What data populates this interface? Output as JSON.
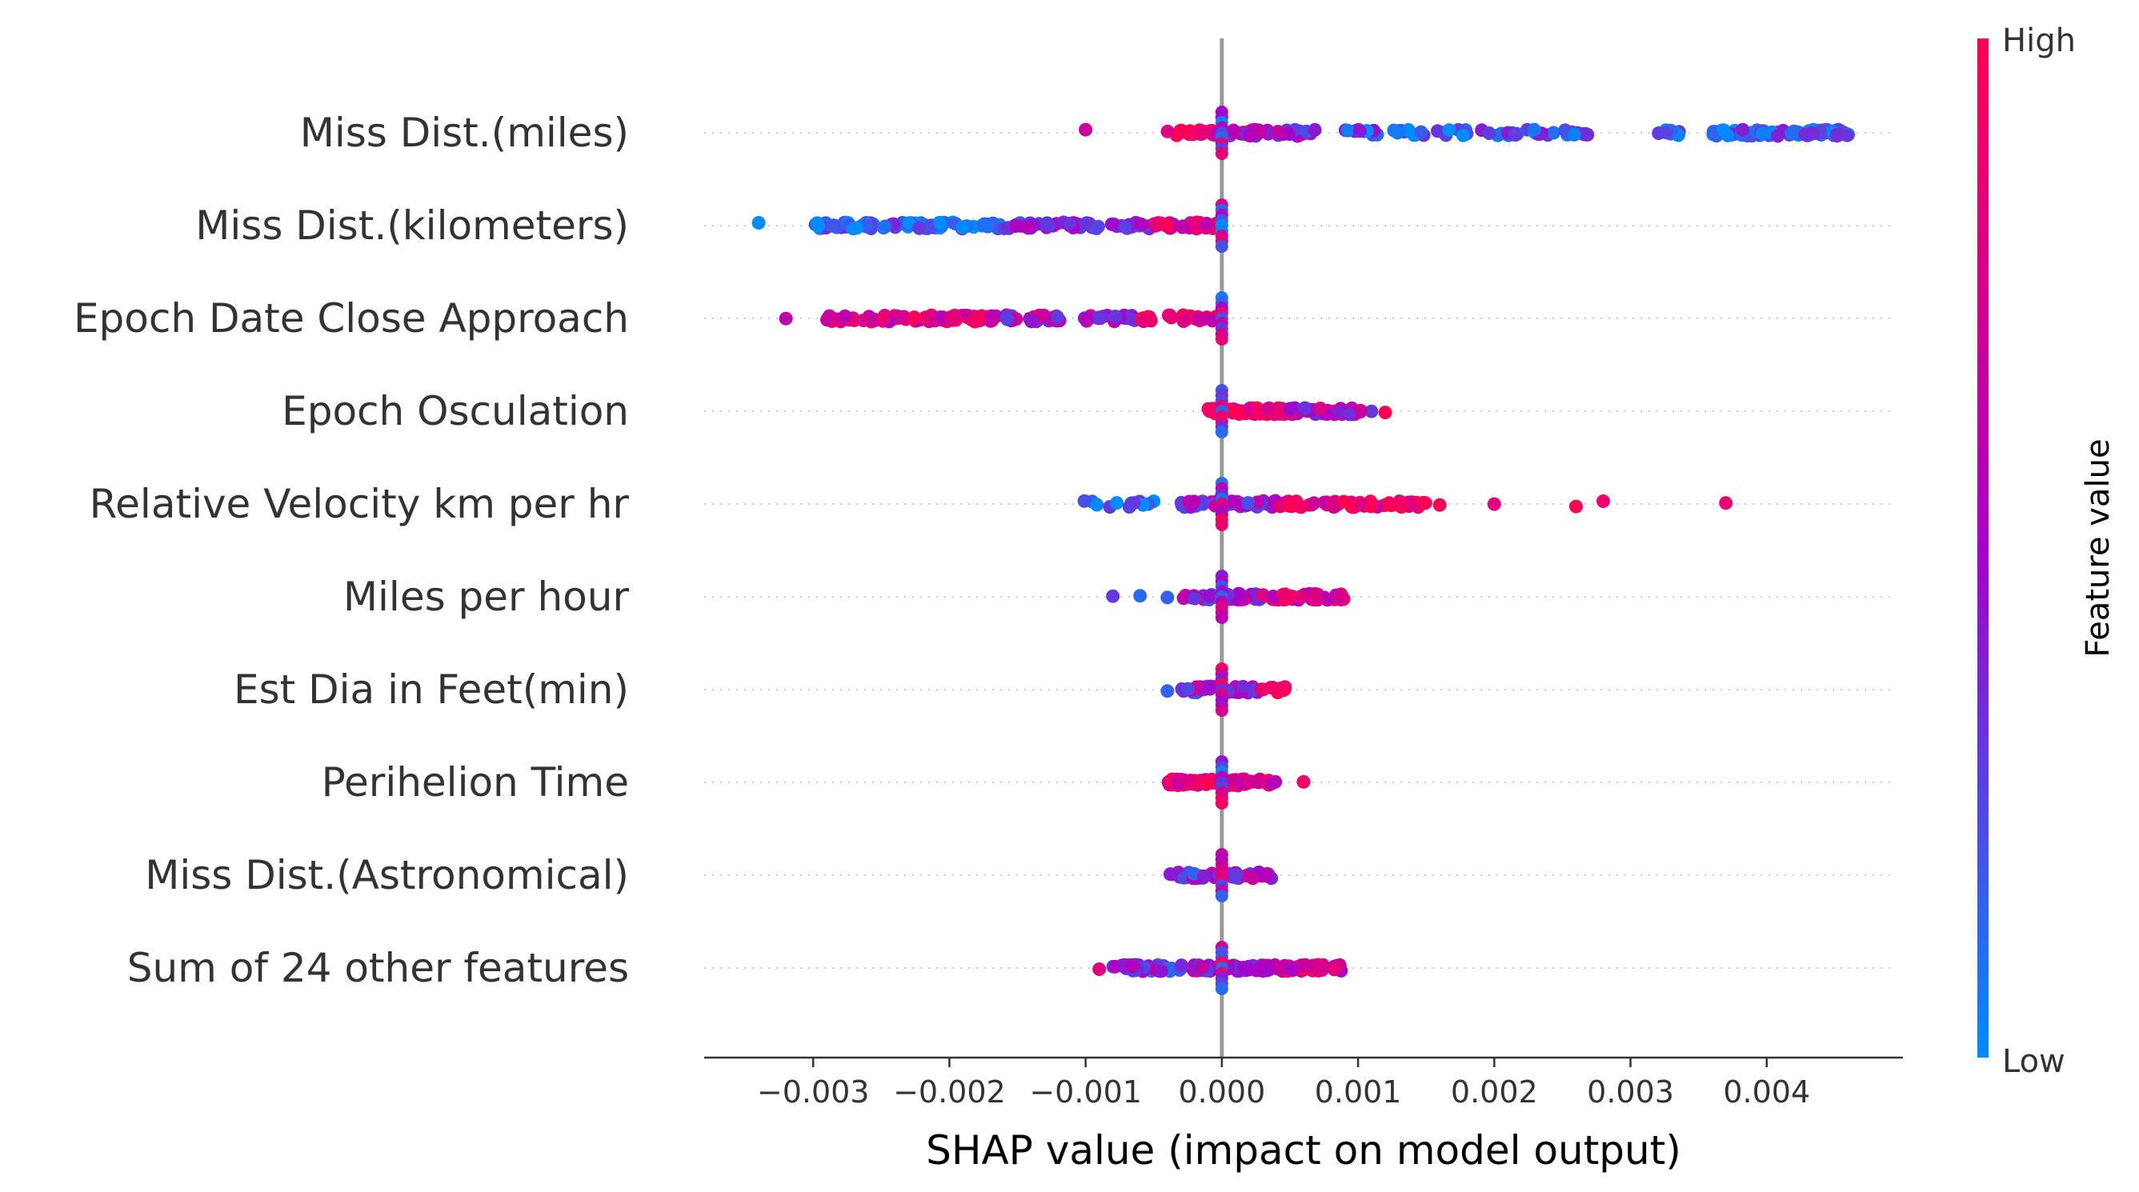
{
  "chart_data": {
    "type": "scatter",
    "title": "",
    "xlabel": "SHAP value (impact on model output)",
    "ylabel": "",
    "xlim": [
      -0.0038,
      0.005
    ],
    "xticks": [
      -0.003,
      -0.002,
      -0.001,
      0.0,
      0.001,
      0.002,
      0.003,
      0.004
    ],
    "xtick_labels": [
      "−0.003",
      "−0.002",
      "−0.001",
      "0.000",
      "0.001",
      "0.002",
      "0.003",
      "0.004"
    ],
    "grid": "dotted horizontal row guides",
    "zero_line": true,
    "colorbar": {
      "title": "Feature value",
      "high_label": "High",
      "low_label": "Low",
      "high_color": "#ff0052",
      "mid_color": "#a800c9",
      "low_color": "#008bfb"
    },
    "features": [
      {
        "name": "Miss Dist.(miles)",
        "segments": [
          {
            "from": -0.0004,
            "to": 0.0,
            "count": 30,
            "color": 0.9
          },
          {
            "from": 0.0,
            "to": 0.0007,
            "count": 45,
            "color": 0.45
          },
          {
            "from": 0.0009,
            "to": 0.0027,
            "count": 60,
            "color": 0.2
          },
          {
            "from": 0.0032,
            "to": 0.0034,
            "count": 8,
            "color": 0.1
          },
          {
            "from": 0.0036,
            "to": 0.0046,
            "count": 90,
            "color": 0.15
          }
        ],
        "points": [
          {
            "x": -0.001,
            "color": 0.95
          }
        ]
      },
      {
        "name": "Miss Dist.(kilometers)",
        "segments": [
          {
            "from": -0.003,
            "to": -0.0016,
            "count": 90,
            "color": 0.12
          },
          {
            "from": -0.0016,
            "to": -0.0005,
            "count": 50,
            "color": 0.35
          },
          {
            "from": -0.0005,
            "to": 0.0,
            "count": 35,
            "color": 0.85
          }
        ],
        "points": [
          {
            "x": -0.0034,
            "color": 0.2
          }
        ]
      },
      {
        "name": "Epoch Date Close Approach",
        "segments": [
          {
            "from": -0.0029,
            "to": -0.0017,
            "count": 90,
            "color": 0.8
          },
          {
            "from": -0.0017,
            "to": -0.0006,
            "count": 50,
            "color": 0.5
          },
          {
            "from": -0.0006,
            "to": 0.0,
            "count": 30,
            "color": 0.85
          }
        ],
        "points": [
          {
            "x": -0.0032,
            "color": 0.7
          }
        ]
      },
      {
        "name": "Epoch Osculation",
        "segments": [
          {
            "from": -0.0001,
            "to": 0.0005,
            "count": 90,
            "color": 0.95
          },
          {
            "from": 0.0005,
            "to": 0.0011,
            "count": 40,
            "color": 0.55
          }
        ],
        "points": [
          {
            "x": 0.0012,
            "color": 0.95
          }
        ]
      },
      {
        "name": "Relative Velocity km per hr",
        "segments": [
          {
            "from": -0.0011,
            "to": -0.0005,
            "count": 12,
            "color": 0.1
          },
          {
            "from": -0.0003,
            "to": 0.0004,
            "count": 50,
            "color": 0.4
          },
          {
            "from": 0.0004,
            "to": 0.0015,
            "count": 60,
            "color": 0.85
          }
        ],
        "points": [
          {
            "x": 0.0016,
            "color": 0.95
          },
          {
            "x": 0.002,
            "color": 0.95
          },
          {
            "x": 0.0026,
            "color": 0.95
          },
          {
            "x": 0.0028,
            "color": 0.95
          },
          {
            "x": 0.0037,
            "color": 0.95
          }
        ]
      },
      {
        "name": "Miles per hour",
        "segments": [
          {
            "from": -0.0003,
            "to": 0.0003,
            "count": 40,
            "color": 0.4
          },
          {
            "from": 0.0003,
            "to": 0.0009,
            "count": 45,
            "color": 0.75
          }
        ],
        "points": [
          {
            "x": -0.0008,
            "color": 0.1
          },
          {
            "x": -0.0006,
            "color": 0.1
          },
          {
            "x": -0.0004,
            "color": 0.1
          }
        ]
      },
      {
        "name": "Est Dia in Feet(min)",
        "segments": [
          {
            "from": -0.0003,
            "to": 0.0,
            "count": 20,
            "color": 0.45
          },
          {
            "from": 0.0,
            "to": 0.0003,
            "count": 20,
            "color": 0.5
          },
          {
            "from": 0.0003,
            "to": 0.0005,
            "count": 10,
            "color": 0.95
          }
        ],
        "points": [
          {
            "x": -0.0004,
            "color": 0.1
          }
        ]
      },
      {
        "name": "Perihelion Time",
        "segments": [
          {
            "from": -0.0004,
            "to": 0.0002,
            "count": 70,
            "color": 0.88
          },
          {
            "from": 0.0002,
            "to": 0.0004,
            "count": 10,
            "color": 0.7
          }
        ],
        "points": [
          {
            "x": 0.0006,
            "color": 0.95
          }
        ]
      },
      {
        "name": "Miss Dist.(Astronomical)",
        "segments": [
          {
            "from": -0.0004,
            "to": 0.0,
            "count": 25,
            "color": 0.4
          },
          {
            "from": 0.0,
            "to": 0.0004,
            "count": 25,
            "color": 0.45
          }
        ],
        "points": []
      },
      {
        "name": "Sum of 24 other features",
        "segments": [
          {
            "from": -0.0008,
            "to": -0.0002,
            "count": 40,
            "color": 0.35
          },
          {
            "from": -0.0002,
            "to": 0.0004,
            "count": 60,
            "color": 0.5
          },
          {
            "from": 0.0004,
            "to": 0.0009,
            "count": 40,
            "color": 0.75
          }
        ],
        "points": [
          {
            "x": -0.0009,
            "color": 0.95
          }
        ]
      }
    ]
  }
}
